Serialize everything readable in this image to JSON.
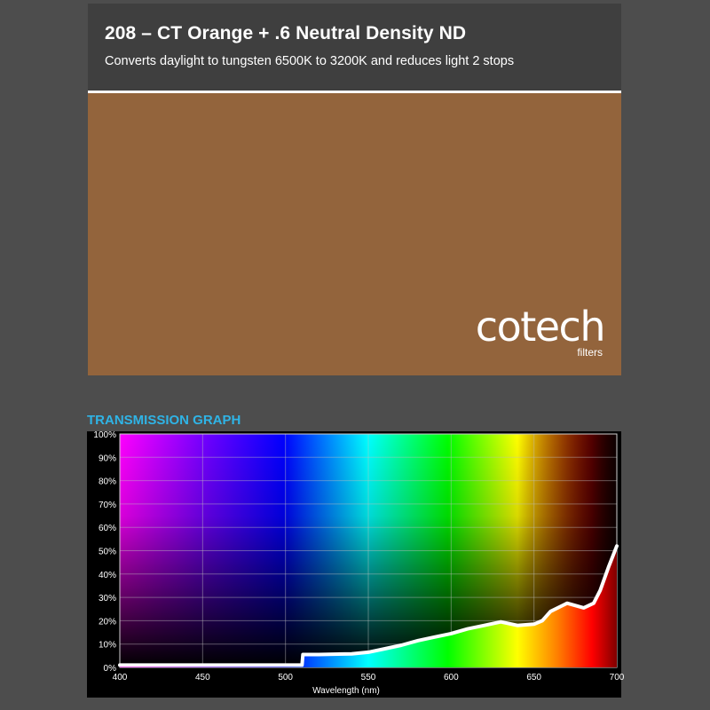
{
  "header": {
    "title": "208 – CT Orange + .6 Neutral Density ND",
    "subtitle": "Converts daylight to tungsten 6500K to 3200K and reduces light 2 stops"
  },
  "swatch": {
    "color": "#93643c",
    "logo_word": "cotech",
    "logo_sub": "filters"
  },
  "graph_heading": "TRANSMISSION GRAPH",
  "colors": {
    "heading": "#2fb4e6",
    "background": "#4d4d4d",
    "curve": "#ffffff"
  },
  "chart_data": {
    "type": "area",
    "title": "",
    "xlabel": "Wavelength (nm)",
    "ylabel": "",
    "xlim": [
      400,
      700
    ],
    "ylim": [
      0,
      100
    ],
    "grid": true,
    "background": "visible-spectrum-gradient",
    "x_ticks": [
      "400",
      "450",
      "500",
      "550",
      "600",
      "650",
      "700"
    ],
    "y_ticks": [
      "0%",
      "10%",
      "20%",
      "30%",
      "40%",
      "50%",
      "60%",
      "70%",
      "80%",
      "90%",
      "100%"
    ],
    "series": [
      {
        "points": [
          [
            400,
            1
          ],
          [
            450,
            1
          ],
          [
            500,
            1
          ],
          [
            510,
            1
          ],
          [
            510.5,
            5.5
          ],
          [
            520,
            5.5
          ],
          [
            540,
            5.8
          ],
          [
            550,
            6.5
          ],
          [
            560,
            8
          ],
          [
            570,
            9.5
          ],
          [
            580,
            11.5
          ],
          [
            590,
            13
          ],
          [
            600,
            14.5
          ],
          [
            610,
            16.5
          ],
          [
            620,
            18
          ],
          [
            630,
            19.5
          ],
          [
            640,
            18
          ],
          [
            650,
            18.5
          ],
          [
            655,
            20
          ],
          [
            660,
            24
          ],
          [
            670,
            27.5
          ],
          [
            680,
            25.5
          ],
          [
            686,
            27.5
          ],
          [
            690,
            33
          ],
          [
            695,
            43
          ],
          [
            700,
            52
          ]
        ]
      }
    ]
  }
}
